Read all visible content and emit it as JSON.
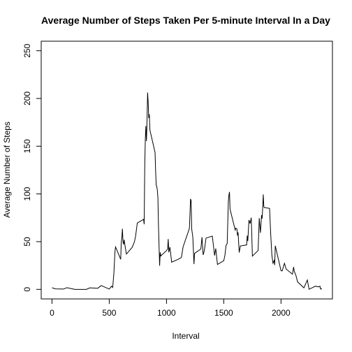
{
  "chart_data": {
    "type": "line",
    "title": "Average Number of Steps Taken Per 5-minute Interval In a Day",
    "xlabel": "Interval",
    "ylabel": "Average Number of Steps",
    "x": [
      0,
      30,
      100,
      130,
      200,
      300,
      330,
      400,
      430,
      440,
      500,
      520,
      530,
      540,
      550,
      555,
      600,
      605,
      610,
      615,
      620,
      625,
      630,
      640,
      650,
      700,
      720,
      730,
      745,
      800,
      805,
      810,
      815,
      820,
      825,
      830,
      835,
      840,
      845,
      850,
      855,
      900,
      905,
      910,
      915,
      920,
      925,
      930,
      935,
      940,
      945,
      950,
      1000,
      1010,
      1015,
      1020,
      1030,
      1045,
      1100,
      1130,
      1145,
      1200,
      1210,
      1215,
      1220,
      1230,
      1240,
      1245,
      1300,
      1310,
      1320,
      1330,
      1345,
      1400,
      1420,
      1430,
      1445,
      1500,
      1510,
      1520,
      1530,
      1540,
      1545,
      1550,
      1555,
      1600,
      1605,
      1615,
      1620,
      1625,
      1635,
      1645,
      1700,
      1705,
      1710,
      1720,
      1730,
      1740,
      1745,
      1750,
      1800,
      1810,
      1820,
      1825,
      1830,
      1835,
      1840,
      1845,
      1850,
      1855,
      1900,
      1910,
      1920,
      1930,
      1940,
      1945,
      1950,
      2000,
      2010,
      2030,
      2045,
      2100,
      2110,
      2115,
      2130,
      2145,
      2200,
      2230,
      2245,
      2300,
      2330,
      2340,
      2345,
      2350,
      2355
    ],
    "values": [
      1.7,
      0.5,
      0.3,
      1.8,
      0,
      0,
      1.6,
      1.2,
      4,
      3.5,
      0.3,
      3.3,
      2,
      16,
      39.5,
      44.5,
      31.5,
      49.3,
      53.8,
      63.5,
      50,
      47,
      52,
      44,
      37,
      44,
      49.9,
      55.7,
      69.5,
      73.4,
      68.2,
      129.4,
      157.5,
      171.2,
      155.4,
      177.3,
      206.2,
      195.9,
      179.6,
      183.4,
      167,
      143.5,
      124,
      109.1,
      108.1,
      103.7,
      95.9,
      66.2,
      45.2,
      24.8,
      38.8,
      35,
      40.6,
      42.4,
      52.7,
      38.9,
      44.3,
      28.5,
      31.4,
      33.4,
      44.6,
      63.9,
      94.8,
      92.8,
      63.4,
      54.5,
      26.5,
      37.7,
      42.3,
      54.6,
      36.1,
      40.4,
      53.7,
      55.8,
      35.5,
      42.8,
      26.1,
      30,
      35.5,
      46,
      48.1,
      91.5,
      98.7,
      102.1,
      84,
      62.1,
      64.1,
      63.2,
      56.4,
      59.8,
      38.6,
      45.5,
      46.6,
      56.3,
      50.7,
      72.7,
      68.9,
      75.1,
      56.5,
      34.8,
      40.7,
      74.7,
      59.3,
      67.8,
      77.7,
      74.2,
      85.3,
      99.5,
      86.6,
      85.6,
      84.9,
      58,
      36.1,
      27.4,
      30.2,
      25.5,
      45.7,
      19.6,
      19.3,
      27.3,
      21.3,
      15.9,
      23.5,
      19.2,
      14.7,
      7.8,
      1.6,
      9.8,
      0.1,
      3.3,
      2.6,
      3.3,
      0.6,
      0.2,
      1.1
    ],
    "color": "#000000",
    "xlim": [
      -94.2,
      2449.2
    ],
    "xticks": [
      0,
      500,
      1000,
      1500,
      2000
    ],
    "ylim": [
      -10,
      260
    ],
    "yticks": [
      0,
      50,
      100,
      150,
      200,
      250
    ]
  }
}
